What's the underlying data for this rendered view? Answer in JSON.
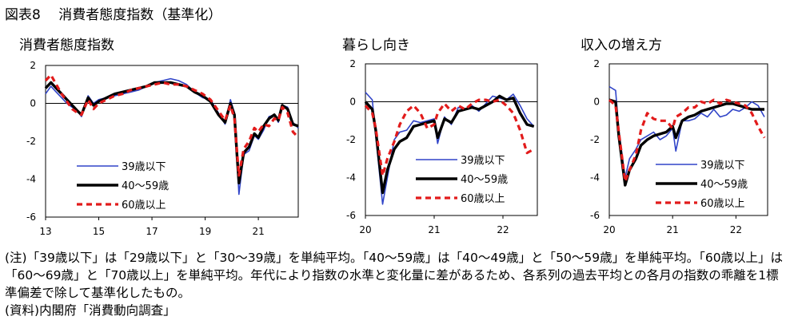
{
  "figure_title": "図表8　 消費者態度指数（基準化）",
  "legend_labels": [
    "39歳以下",
    "40～59歳",
    "60歳以上"
  ],
  "colors": {
    "young": "#3044c8",
    "middle": "#000000",
    "senior": "#e21b1b"
  },
  "chart_data": [
    {
      "type": "line",
      "title": "消費者態度指数",
      "xlabel": "",
      "ylabel": "",
      "ylim": [
        -6,
        2
      ],
      "xlim": [
        2013.0,
        2022.5
      ],
      "yticks": [
        2,
        0,
        -2,
        -4,
        -6
      ],
      "xticks": [
        {
          "value": 2013,
          "label": "13"
        },
        {
          "value": 2015,
          "label": "15"
        },
        {
          "value": 2017,
          "label": "17"
        },
        {
          "value": 2019,
          "label": "19"
        },
        {
          "value": 2021,
          "label": "21"
        }
      ],
      "grid": false,
      "legend_position": "bottom-left",
      "series": [
        {
          "name": "39歳以下",
          "x": [
            2013.0,
            2013.2,
            2013.4,
            2013.6,
            2013.8,
            2014.0,
            2014.2,
            2014.35,
            2014.6,
            2014.8,
            2015.0,
            2015.3,
            2015.6,
            2015.9,
            2016.2,
            2016.5,
            2016.8,
            2017.1,
            2017.4,
            2017.7,
            2018.0,
            2018.3,
            2018.6,
            2018.9,
            2019.2,
            2019.5,
            2019.75,
            2019.95,
            2020.1,
            2020.2,
            2020.27,
            2020.45,
            2020.65,
            2020.85,
            2021.0,
            2021.2,
            2021.4,
            2021.6,
            2021.75,
            2021.9,
            2022.1,
            2022.3,
            2022.5
          ],
          "y": [
            0.5,
            0.9,
            0.6,
            0.3,
            0.0,
            -0.2,
            -0.4,
            -0.7,
            0.4,
            0.0,
            0.2,
            0.3,
            0.4,
            0.5,
            0.6,
            0.7,
            0.9,
            1.1,
            1.2,
            1.3,
            1.2,
            1.0,
            0.6,
            0.3,
            0.2,
            -0.5,
            -1.1,
            0.2,
            -0.5,
            -3.0,
            -4.8,
            -2.7,
            -2.5,
            -1.7,
            -1.9,
            -1.4,
            -0.7,
            -0.6,
            -1.0,
            -0.1,
            -0.2,
            -1.0,
            -1.3
          ]
        },
        {
          "name": "40～59歳",
          "x": [
            2013.0,
            2013.2,
            2013.4,
            2013.6,
            2013.8,
            2014.0,
            2014.2,
            2014.35,
            2014.6,
            2014.8,
            2015.0,
            2015.3,
            2015.6,
            2015.9,
            2016.2,
            2016.5,
            2016.8,
            2017.1,
            2017.4,
            2017.7,
            2018.0,
            2018.3,
            2018.6,
            2018.9,
            2019.2,
            2019.5,
            2019.75,
            2019.95,
            2020.1,
            2020.2,
            2020.27,
            2020.45,
            2020.65,
            2020.85,
            2021.0,
            2021.2,
            2021.4,
            2021.6,
            2021.75,
            2021.9,
            2022.1,
            2022.3,
            2022.5
          ],
          "y": [
            0.8,
            1.1,
            0.8,
            0.5,
            0.2,
            -0.1,
            -0.4,
            -0.6,
            0.3,
            -0.1,
            0.1,
            0.3,
            0.5,
            0.6,
            0.7,
            0.8,
            0.9,
            1.1,
            1.1,
            1.1,
            1.0,
            0.9,
            0.6,
            0.4,
            0.1,
            -0.6,
            -1.0,
            0.0,
            -0.6,
            -2.8,
            -4.2,
            -2.6,
            -2.3,
            -1.6,
            -1.8,
            -1.2,
            -0.8,
            -0.6,
            -0.9,
            -0.1,
            -0.3,
            -1.1,
            -1.2
          ]
        },
        {
          "name": "60歳以上",
          "x": [
            2013.0,
            2013.2,
            2013.4,
            2013.6,
            2013.8,
            2014.0,
            2014.2,
            2014.35,
            2014.6,
            2014.8,
            2015.0,
            2015.3,
            2015.6,
            2015.9,
            2016.2,
            2016.5,
            2016.8,
            2017.1,
            2017.4,
            2017.7,
            2018.0,
            2018.3,
            2018.6,
            2018.9,
            2019.2,
            2019.5,
            2019.75,
            2019.95,
            2020.1,
            2020.2,
            2020.27,
            2020.45,
            2020.65,
            2020.85,
            2021.0,
            2021.2,
            2021.4,
            2021.6,
            2021.75,
            2021.9,
            2022.1,
            2022.3,
            2022.5
          ],
          "y": [
            1.2,
            1.5,
            1.0,
            0.5,
            0.1,
            -0.3,
            -0.5,
            -0.6,
            0.2,
            -0.3,
            0.0,
            0.2,
            0.4,
            0.5,
            0.7,
            0.8,
            0.9,
            1.0,
            1.1,
            1.0,
            1.0,
            0.9,
            0.7,
            0.5,
            0.2,
            -0.4,
            -0.9,
            -0.1,
            -0.8,
            -2.6,
            -3.8,
            -2.4,
            -2.0,
            -1.3,
            -1.5,
            -1.1,
            -1.2,
            -0.8,
            -0.9,
            -0.2,
            -0.5,
            -1.5,
            -1.8
          ]
        }
      ]
    },
    {
      "type": "line",
      "title": "暮らし向き",
      "xlabel": "",
      "ylabel": "",
      "ylim": [
        -6,
        2
      ],
      "xlim": [
        2020.0,
        2022.5
      ],
      "yticks": [
        2,
        0,
        -2,
        -4,
        -6
      ],
      "xticks": [
        {
          "value": 2020,
          "label": "20"
        },
        {
          "value": 2021,
          "label": "21"
        },
        {
          "value": 2022,
          "label": "22"
        }
      ],
      "grid": false,
      "legend_position": "bottom-right",
      "series": [
        {
          "name": "39歳以下",
          "x": [
            2020.0,
            2020.1,
            2020.15,
            2020.25,
            2020.32,
            2020.42,
            2020.5,
            2020.6,
            2020.7,
            2020.8,
            2020.9,
            2021.0,
            2021.05,
            2021.15,
            2021.25,
            2021.35,
            2021.45,
            2021.55,
            2021.65,
            2021.75,
            2021.85,
            2021.95,
            2022.05,
            2022.15,
            2022.25,
            2022.35,
            2022.45
          ],
          "y": [
            0.5,
            0.1,
            -1.8,
            -5.4,
            -4.0,
            -2.0,
            -1.6,
            -1.5,
            -1.0,
            -1.1,
            -1.0,
            -0.9,
            -2.2,
            -0.8,
            -1.2,
            -0.3,
            -0.4,
            -0.2,
            -0.5,
            -0.1,
            0.3,
            0.2,
            0.1,
            0.4,
            -0.2,
            -0.9,
            -1.3
          ]
        },
        {
          "name": "40～59歳",
          "x": [
            2020.0,
            2020.1,
            2020.15,
            2020.25,
            2020.32,
            2020.42,
            2020.5,
            2020.6,
            2020.7,
            2020.8,
            2020.9,
            2021.0,
            2021.05,
            2021.15,
            2021.25,
            2021.35,
            2021.45,
            2021.55,
            2021.65,
            2021.75,
            2021.85,
            2021.95,
            2022.05,
            2022.15,
            2022.25,
            2022.35,
            2022.45
          ],
          "y": [
            0.0,
            -0.4,
            -1.5,
            -4.8,
            -3.6,
            -2.5,
            -2.1,
            -1.9,
            -1.3,
            -1.2,
            -1.1,
            -1.0,
            -1.9,
            -0.9,
            -1.1,
            -0.5,
            -0.4,
            -0.3,
            -0.4,
            -0.2,
            0.0,
            0.3,
            0.1,
            0.2,
            -0.6,
            -1.2,
            -1.3
          ]
        },
        {
          "name": "60歳以上",
          "x": [
            2020.0,
            2020.1,
            2020.15,
            2020.25,
            2020.32,
            2020.42,
            2020.5,
            2020.6,
            2020.7,
            2020.8,
            2020.9,
            2021.0,
            2021.05,
            2021.15,
            2021.25,
            2021.35,
            2021.45,
            2021.55,
            2021.65,
            2021.75,
            2021.85,
            2021.95,
            2022.05,
            2022.15,
            2022.25,
            2022.35,
            2022.45
          ],
          "y": [
            -0.2,
            -0.6,
            -1.4,
            -3.9,
            -3.0,
            -2.1,
            -1.2,
            -0.5,
            -0.2,
            -0.6,
            -1.4,
            -1.2,
            -0.6,
            -0.1,
            -0.5,
            -0.2,
            -0.4,
            -0.1,
            0.1,
            0.1,
            0.0,
            0.1,
            -0.2,
            -0.6,
            -1.5,
            -2.7,
            -2.5
          ]
        }
      ]
    },
    {
      "type": "line",
      "title": "収入の増え方",
      "xlabel": "",
      "ylabel": "",
      "ylim": [
        -6,
        2
      ],
      "xlim": [
        2020.0,
        2022.5
      ],
      "yticks": [
        2,
        0,
        -2,
        -4,
        -6
      ],
      "xticks": [
        {
          "value": 2020,
          "label": "20"
        },
        {
          "value": 2021,
          "label": "21"
        },
        {
          "value": 2022,
          "label": "22"
        }
      ],
      "grid": false,
      "legend_position": "bottom-right",
      "series": [
        {
          "name": "39歳以下",
          "x": [
            2020.0,
            2020.1,
            2020.15,
            2020.25,
            2020.32,
            2020.42,
            2020.5,
            2020.6,
            2020.7,
            2020.8,
            2020.9,
            2021.0,
            2021.05,
            2021.15,
            2021.25,
            2021.35,
            2021.45,
            2021.55,
            2021.65,
            2021.75,
            2021.85,
            2021.95,
            2022.05,
            2022.15,
            2022.25,
            2022.35,
            2022.45
          ],
          "y": [
            0.8,
            0.6,
            -1.5,
            -4.0,
            -3.0,
            -2.5,
            -2.0,
            -1.8,
            -1.6,
            -2.0,
            -1.8,
            -1.4,
            -2.6,
            -1.0,
            -1.0,
            -0.9,
            -0.6,
            -0.8,
            -0.4,
            -0.8,
            -0.7,
            -0.4,
            -0.5,
            -0.3,
            0.0,
            -0.2,
            -0.8
          ]
        },
        {
          "name": "40～59歳",
          "x": [
            2020.0,
            2020.1,
            2020.15,
            2020.25,
            2020.32,
            2020.42,
            2020.5,
            2020.6,
            2020.7,
            2020.8,
            2020.9,
            2021.0,
            2021.05,
            2021.15,
            2021.25,
            2021.35,
            2021.45,
            2021.55,
            2021.65,
            2021.75,
            2021.85,
            2021.95,
            2022.05,
            2022.15,
            2022.25,
            2022.35,
            2022.45
          ],
          "y": [
            0.1,
            0.0,
            -1.8,
            -4.4,
            -3.6,
            -3.0,
            -2.3,
            -2.0,
            -1.8,
            -1.7,
            -1.6,
            -1.3,
            -1.9,
            -1.0,
            -0.8,
            -0.7,
            -0.5,
            -0.4,
            -0.3,
            -0.2,
            -0.1,
            -0.1,
            -0.2,
            -0.3,
            -0.4,
            -0.4,
            -0.4
          ]
        },
        {
          "name": "60歳以上",
          "x": [
            2020.0,
            2020.1,
            2020.15,
            2020.25,
            2020.32,
            2020.42,
            2020.5,
            2020.6,
            2020.7,
            2020.8,
            2020.9,
            2021.0,
            2021.05,
            2021.15,
            2021.25,
            2021.35,
            2021.45,
            2021.55,
            2021.65,
            2021.75,
            2021.85,
            2021.95,
            2022.05,
            2022.15,
            2022.25,
            2022.35,
            2022.45
          ],
          "y": [
            0.1,
            -0.2,
            -1.6,
            -4.2,
            -3.6,
            -2.8,
            -1.5,
            -0.6,
            -0.9,
            -1.0,
            -1.0,
            -1.4,
            -0.8,
            -0.6,
            -0.3,
            -0.3,
            0.0,
            -0.1,
            0.1,
            -0.1,
            0.1,
            0.0,
            -0.1,
            -0.2,
            -0.6,
            -1.3,
            -1.9
          ]
        }
      ]
    }
  ],
  "notes": [
    "(注)「39歳以下」は「29歳以下」と「30～39歳」を単純平均。「40～59歳」は「40～49歳」と「50～59歳」を単純平均。「60歳以上」は「60～69歳」と「70歳以上」を単純平均。年代により指数の水準と変化量に差があるため、各系列の過去平均との各月の指数の乖離を1標準偏差で除して基準化したもの。",
    "(資料)内閣府「消費動向調査」"
  ]
}
